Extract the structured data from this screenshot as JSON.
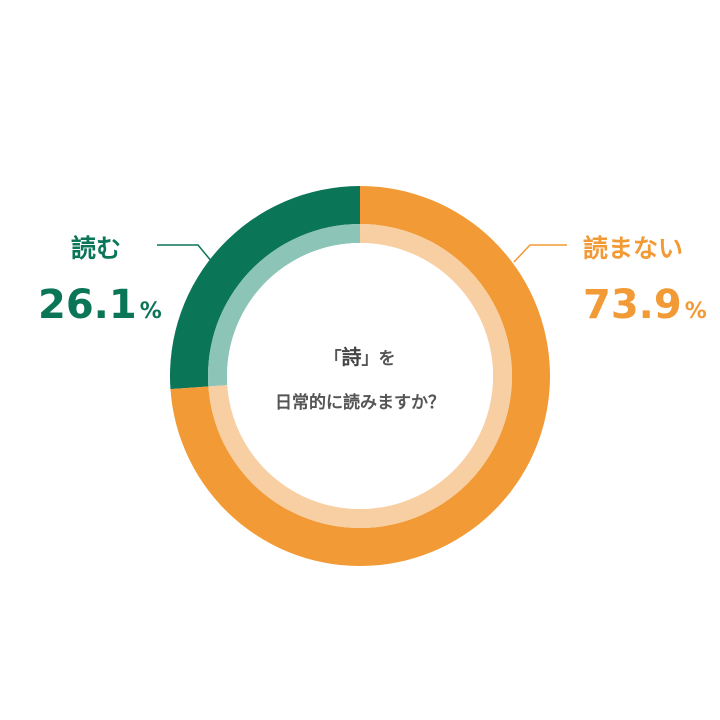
{
  "chart_data": {
    "type": "pie",
    "title": "「詩」を日常的に読みますか？",
    "title_lines": [
      "「詩」を",
      "日常的に読みますか？"
    ],
    "title_emphasis": "詩",
    "unit": "%",
    "slices": [
      {
        "name": "読む",
        "value": 26.1,
        "display": "26.1",
        "color": "#0b7558",
        "inner_color": "#8cc5b7",
        "label_side": "left"
      },
      {
        "name": "読まない",
        "value": 73.9,
        "display": "73.9",
        "color": "#f29a35",
        "inner_color": "#f8cfa2",
        "label_side": "right"
      }
    ],
    "start": "top",
    "direction": "counter-clockwise for 読む",
    "legend": "none",
    "grid": false
  },
  "colors": {
    "background": "#ffffff",
    "center_text": "#555555",
    "leader_left": "#0b7558",
    "leader_right": "#f29a35"
  }
}
